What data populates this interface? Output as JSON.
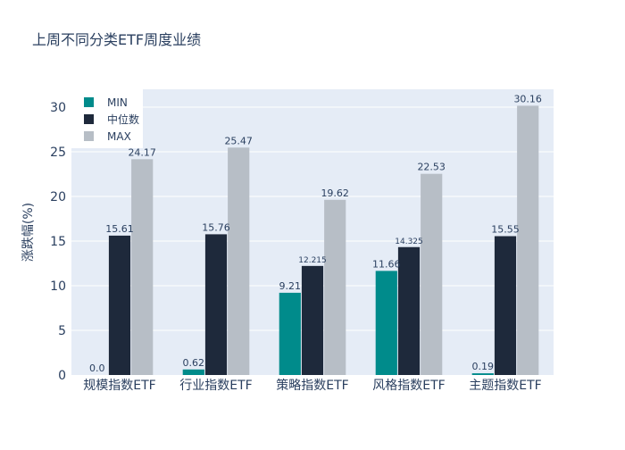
{
  "chart_data": {
    "type": "bar",
    "title": "上周不同分类ETF周度业绩",
    "xlabel": "",
    "ylabel": "涨跌幅(%)",
    "ylim": [
      0,
      32
    ],
    "yticks": [
      0,
      5,
      10,
      15,
      20,
      25,
      30
    ],
    "grid": true,
    "legend_position": "top-left",
    "categories": [
      "规模指数ETF",
      "行业指数ETF",
      "策略指数ETF",
      "风格指数ETF",
      "主题指数ETF"
    ],
    "series": [
      {
        "name": "MIN",
        "color": "#008b8b",
        "values": [
          0.0,
          0.62,
          9.21,
          11.66,
          0.19
        ],
        "labels": [
          "0.0",
          "0.62",
          "9.21",
          "11.66",
          "0.19"
        ]
      },
      {
        "name": "中位数",
        "color": "#1e293b",
        "values": [
          15.61,
          15.76,
          12.215,
          14.325,
          15.55
        ],
        "labels": [
          "15.61",
          "15.76",
          "12.215",
          "14.325",
          "15.55"
        ]
      },
      {
        "name": "MAX",
        "color": "#b7bec6",
        "values": [
          24.17,
          25.47,
          19.62,
          22.53,
          30.16
        ],
        "labels": [
          "24.17",
          "25.47",
          "19.62",
          "22.53",
          "30.16"
        ]
      }
    ]
  }
}
